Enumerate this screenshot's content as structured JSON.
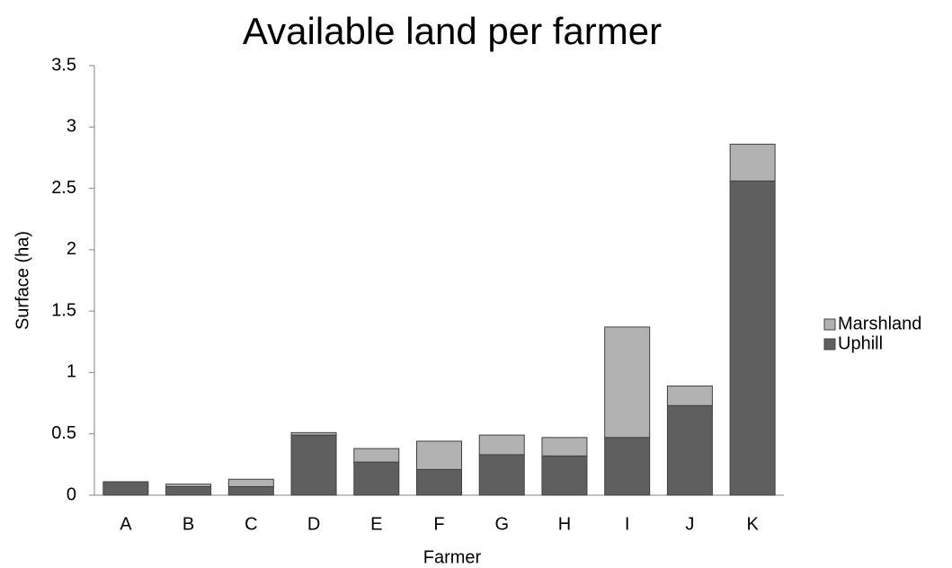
{
  "chart_data": {
    "type": "stacked_bar",
    "title": "Available land per farmer",
    "x_label": "Farmer",
    "y_label": "Surface (ha)",
    "categories": [
      "A",
      "B",
      "C",
      "D",
      "E",
      "F",
      "G",
      "H",
      "I",
      "J",
      "K"
    ],
    "series": [
      {
        "name": "Uphill",
        "color": "#5f5f5f",
        "values": [
          0.11,
          0.07,
          0.07,
          0.49,
          0.27,
          0.21,
          0.33,
          0.32,
          0.47,
          0.73,
          2.56
        ]
      },
      {
        "name": "Marshland",
        "color": "#b2b2b2",
        "values": [
          0,
          0.02,
          0.06,
          0.02,
          0.11,
          0.23,
          0.16,
          0.15,
          0.9,
          0.16,
          0.3
        ]
      }
    ],
    "ylim": [
      0,
      3.5
    ],
    "yticks": [
      0,
      0.5,
      1,
      1.5,
      2,
      2.5,
      3,
      3.5
    ],
    "legend": "right"
  }
}
